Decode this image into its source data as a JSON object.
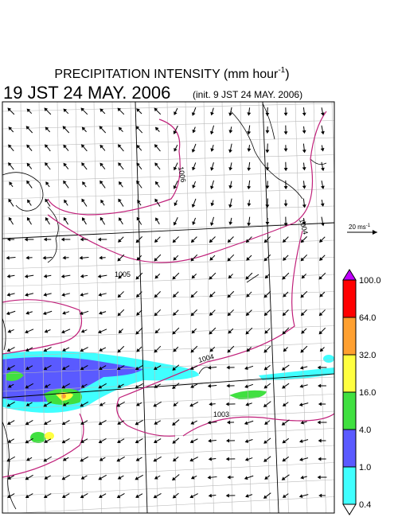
{
  "title": {
    "text": "PRECIPITATION INTENSITY (mm hour",
    "superscript": "-1",
    "close": ")"
  },
  "valid_time": "19 JST 24 MAY. 2006",
  "init_time": "(init. 9 JST 24 MAY. 2006)",
  "wind_scale": {
    "label": "20 ms",
    "superscript": "-1"
  },
  "colorbar": {
    "labels": [
      "100.0",
      "64.0",
      "32.0",
      "16.0",
      "4.0",
      "1.0",
      "0.4"
    ],
    "colors": [
      "#ff0000",
      "#ffa030",
      "#ffff40",
      "#40e040",
      "#5a5aff",
      "#40ffff"
    ],
    "over_color": "#c000ff",
    "under_color": "#ffffff"
  },
  "isobars": [
    {
      "label": "1006"
    },
    {
      "label": "1004"
    },
    {
      "label": "1005"
    },
    {
      "label": "1004"
    },
    {
      "label": "1003"
    }
  ]
}
